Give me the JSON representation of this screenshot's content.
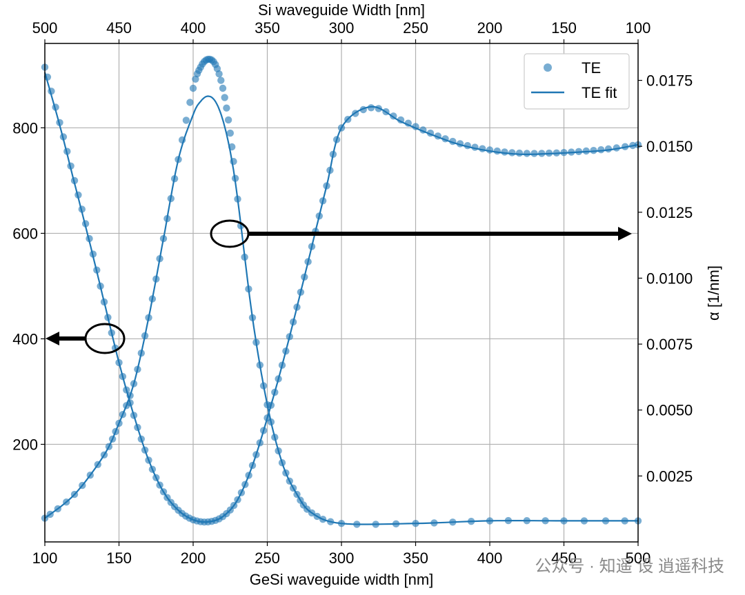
{
  "chart_data": {
    "type": "scatter",
    "xlabel": "GeSi waveguide width [nm]",
    "x2label": "Si waveguide Width [nm]",
    "ylabel": "",
    "y2label": "α [1/nm]",
    "xlim": [
      100,
      500
    ],
    "x2lim": [
      500,
      100
    ],
    "ylim": [
      15,
      960
    ],
    "y2lim": [
      0.0,
      0.0189
    ],
    "xticks": [
      "100",
      "150",
      "200",
      "250",
      "300",
      "350",
      "400",
      "450",
      "500"
    ],
    "x2ticks": [
      "500",
      "450",
      "400",
      "350",
      "300",
      "250",
      "200",
      "150",
      "100"
    ],
    "yticks": [
      "200",
      "400",
      "600",
      "800"
    ],
    "y2ticks": [
      "0.0025",
      "0.0050",
      "0.0075",
      "0.0100",
      "0.0125",
      "0.0150",
      "0.0175"
    ],
    "grid": true,
    "legend_position": "top-right",
    "color": "#1f77b4",
    "series": [
      {
        "name": "TE",
        "kind": "scatter",
        "axis": "left",
        "x": [
          100,
          110,
          120,
          130,
          140,
          150,
          160,
          170,
          180,
          190,
          200,
          210,
          220,
          230,
          240,
          250,
          260,
          270,
          280,
          290,
          300,
          320,
          340,
          360,
          380,
          400,
          420,
          440,
          460,
          480,
          500
        ],
        "y": [
          915,
          810,
          700,
          590,
          470,
          355,
          255,
          170,
          110,
          75,
          57,
          53,
          63,
          95,
          160,
          250,
          350,
          460,
          575,
          690,
          800,
          838,
          815,
          790,
          770,
          758,
          752,
          752,
          755,
          760,
          768
        ]
      },
      {
        "name": "TE fit",
        "kind": "line",
        "axis": "left",
        "x": [
          100,
          110,
          120,
          130,
          140,
          150,
          160,
          170,
          180,
          190,
          200,
          210,
          220,
          230,
          240,
          250,
          260,
          270,
          280,
          290,
          300,
          320,
          340,
          360,
          380,
          400,
          420,
          440,
          460,
          480,
          500
        ],
        "y": [
          905,
          805,
          695,
          585,
          470,
          355,
          255,
          170,
          110,
          75,
          57,
          53,
          63,
          95,
          160,
          250,
          350,
          460,
          575,
          690,
          800,
          840,
          812,
          788,
          768,
          756,
          750,
          751,
          754,
          758,
          768
        ]
      },
      {
        "kind": "scatter",
        "axis": "right",
        "x": [
          100,
          120,
          140,
          150,
          160,
          170,
          180,
          190,
          200,
          205,
          210,
          215,
          220,
          225,
          230,
          240,
          250,
          260,
          270,
          280,
          300,
          350,
          400,
          450,
          500
        ],
        "y": [
          0.0009,
          0.0018,
          0.0033,
          0.0045,
          0.006,
          0.0085,
          0.0115,
          0.0145,
          0.0172,
          0.018,
          0.0183,
          0.0181,
          0.0172,
          0.0155,
          0.013,
          0.0085,
          0.0052,
          0.003,
          0.0018,
          0.0011,
          0.0007,
          0.0007,
          0.0008,
          0.0008,
          0.0008
        ]
      },
      {
        "kind": "line",
        "axis": "right",
        "x": [
          100,
          120,
          140,
          150,
          160,
          170,
          180,
          190,
          200,
          205,
          210,
          215,
          220,
          225,
          230,
          240,
          250,
          260,
          270,
          280,
          300,
          350,
          400,
          450,
          500
        ],
        "y": [
          0.0009,
          0.0018,
          0.0033,
          0.0045,
          0.006,
          0.0085,
          0.0115,
          0.0145,
          0.0162,
          0.0167,
          0.0169,
          0.0167,
          0.016,
          0.0148,
          0.013,
          0.0085,
          0.0052,
          0.003,
          0.0018,
          0.0011,
          0.0007,
          0.0007,
          0.0008,
          0.0008,
          0.0008
        ]
      }
    ],
    "annotations": [
      {
        "type": "ellipse-arrow",
        "at": [
          140,
          400
        ],
        "arrow_to": "left-axis"
      },
      {
        "type": "ellipse-arrow",
        "at": [
          225,
          600
        ],
        "arrow_to": "right-axis"
      }
    ]
  },
  "watermark": "公众号 · 知遥 设 逍遥科技"
}
